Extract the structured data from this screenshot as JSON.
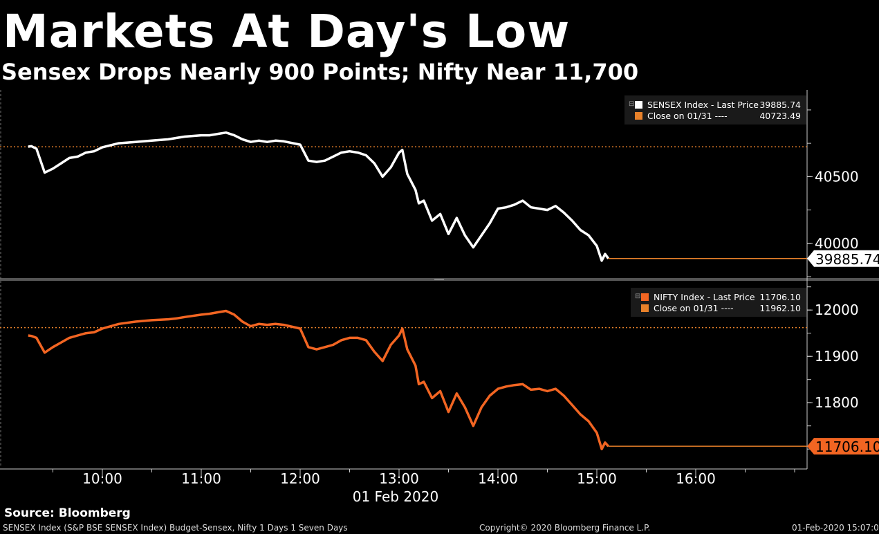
{
  "title": "Markets At Day's Low",
  "subtitle": "Sensex Drops Nearly 900 Points; Nifty Near 11,700",
  "source": "Source: Bloomberg",
  "footer": {
    "left": "SENSEX Index (S&P BSE SENSEX Index) Budget-Sensex, Nifty 1 Days 1 Seven Days",
    "center": "Copyright© 2020 Bloomberg Finance L.P.",
    "right": "01-Feb-2020 15:07:08"
  },
  "colors": {
    "sensex": "#ffffff",
    "nifty": "#f26522",
    "close_ref": "#e8812a",
    "background": "#000000"
  },
  "chart_data": [
    {
      "type": "line",
      "name": "sensex-panel",
      "legend": [
        {
          "label": "SENSEX Index - Last Price",
          "value": "39885.74",
          "color": "#ffffff"
        },
        {
          "label": "Close on 01/31 ----",
          "value": "40723.49",
          "color": "#e8812a"
        }
      ],
      "last_label": "39885.74",
      "close": 40723.49,
      "ylim": [
        39750,
        41150
      ],
      "yticks": [
        40000,
        40500
      ],
      "ytick_labels": [
        "40000",
        "40500"
      ],
      "series": [
        {
          "name": "SENSEX Index - Last Price",
          "x": [
            "09:15",
            "09:17",
            "09:20",
            "09:25",
            "09:30",
            "09:35",
            "09:40",
            "09:45",
            "09:50",
            "09:55",
            "10:00",
            "10:10",
            "10:20",
            "10:30",
            "10:40",
            "10:45",
            "10:50",
            "11:00",
            "11:05",
            "11:10",
            "11:15",
            "11:20",
            "11:25",
            "11:30",
            "11:35",
            "11:40",
            "11:45",
            "11:50",
            "12:00",
            "12:05",
            "12:10",
            "12:15",
            "12:20",
            "12:25",
            "12:30",
            "12:35",
            "12:40",
            "12:45",
            "12:50",
            "12:55",
            "13:00",
            "13:02",
            "13:05",
            "13:10",
            "13:12",
            "13:15",
            "13:20",
            "13:25",
            "13:30",
            "13:35",
            "13:40",
            "13:45",
            "13:50",
            "13:55",
            "14:00",
            "14:05",
            "14:10",
            "14:15",
            "14:20",
            "14:25",
            "14:30",
            "14:35",
            "14:40",
            "14:45",
            "14:50",
            "14:55",
            "15:00",
            "15:03",
            "15:05",
            "15:07"
          ],
          "values": [
            40725,
            40728,
            40710,
            40530,
            40560,
            40600,
            40640,
            40650,
            40680,
            40690,
            40720,
            40750,
            40760,
            40770,
            40780,
            40790,
            40800,
            40810,
            40810,
            40820,
            40830,
            40810,
            40780,
            40760,
            40770,
            40760,
            40770,
            40765,
            40740,
            40620,
            40610,
            40620,
            40650,
            40680,
            40690,
            40680,
            40660,
            40600,
            40500,
            40570,
            40680,
            40700,
            40520,
            40400,
            40300,
            40320,
            40170,
            40220,
            40070,
            40190,
            40060,
            39970,
            40060,
            40150,
            40260,
            40270,
            40290,
            40320,
            40270,
            40260,
            40250,
            40280,
            40230,
            40170,
            40100,
            40060,
            39980,
            39870,
            39920,
            39886
          ]
        }
      ]
    },
    {
      "type": "line",
      "name": "nifty-panel",
      "legend": [
        {
          "label": "NIFTY Index - Last Price",
          "value": "11706.10",
          "color": "#f26522"
        },
        {
          "label": "Close on 01/31 ----",
          "value": "11962.10",
          "color": "#e8812a"
        }
      ],
      "last_label": "11706.10",
      "close": 11962.1,
      "ylim": [
        11660,
        12060
      ],
      "yticks": [
        11800,
        11900,
        12000
      ],
      "ytick_labels": [
        "11800",
        "11900",
        "12000"
      ],
      "series": [
        {
          "name": "NIFTY Index - Last Price",
          "x": [
            "09:15",
            "09:17",
            "09:20",
            "09:25",
            "09:30",
            "09:35",
            "09:40",
            "09:45",
            "09:50",
            "09:55",
            "10:00",
            "10:10",
            "10:20",
            "10:30",
            "10:40",
            "10:45",
            "10:50",
            "11:00",
            "11:05",
            "11:10",
            "11:15",
            "11:20",
            "11:25",
            "11:30",
            "11:35",
            "11:40",
            "11:45",
            "11:50",
            "12:00",
            "12:05",
            "12:10",
            "12:15",
            "12:20",
            "12:25",
            "12:30",
            "12:35",
            "12:40",
            "12:45",
            "12:50",
            "12:55",
            "13:00",
            "13:02",
            "13:05",
            "13:10",
            "13:12",
            "13:15",
            "13:20",
            "13:25",
            "13:30",
            "13:35",
            "13:40",
            "13:45",
            "13:50",
            "13:55",
            "14:00",
            "14:05",
            "14:10",
            "14:15",
            "14:20",
            "14:25",
            "14:30",
            "14:35",
            "14:40",
            "14:45",
            "14:50",
            "14:55",
            "15:00",
            "15:03",
            "15:05",
            "15:07"
          ],
          "values": [
            11945,
            11944,
            11940,
            11908,
            11920,
            11930,
            11940,
            11945,
            11950,
            11952,
            11960,
            11970,
            11975,
            11978,
            11980,
            11982,
            11985,
            11990,
            11992,
            11995,
            11998,
            11990,
            11975,
            11965,
            11970,
            11968,
            11970,
            11968,
            11960,
            11920,
            11915,
            11920,
            11925,
            11935,
            11940,
            11940,
            11935,
            11910,
            11890,
            11925,
            11945,
            11960,
            11915,
            11880,
            11840,
            11845,
            11810,
            11825,
            11780,
            11820,
            11790,
            11750,
            11790,
            11815,
            11830,
            11835,
            11838,
            11840,
            11828,
            11830,
            11825,
            11830,
            11815,
            11795,
            11775,
            11760,
            11735,
            11700,
            11714,
            11706
          ]
        }
      ]
    }
  ],
  "x_axis": {
    "ticks": [
      "10:00",
      "11:00",
      "12:00",
      "13:00",
      "14:00",
      "15:00",
      "16:00"
    ],
    "date_label": "01 Feb 2020"
  }
}
